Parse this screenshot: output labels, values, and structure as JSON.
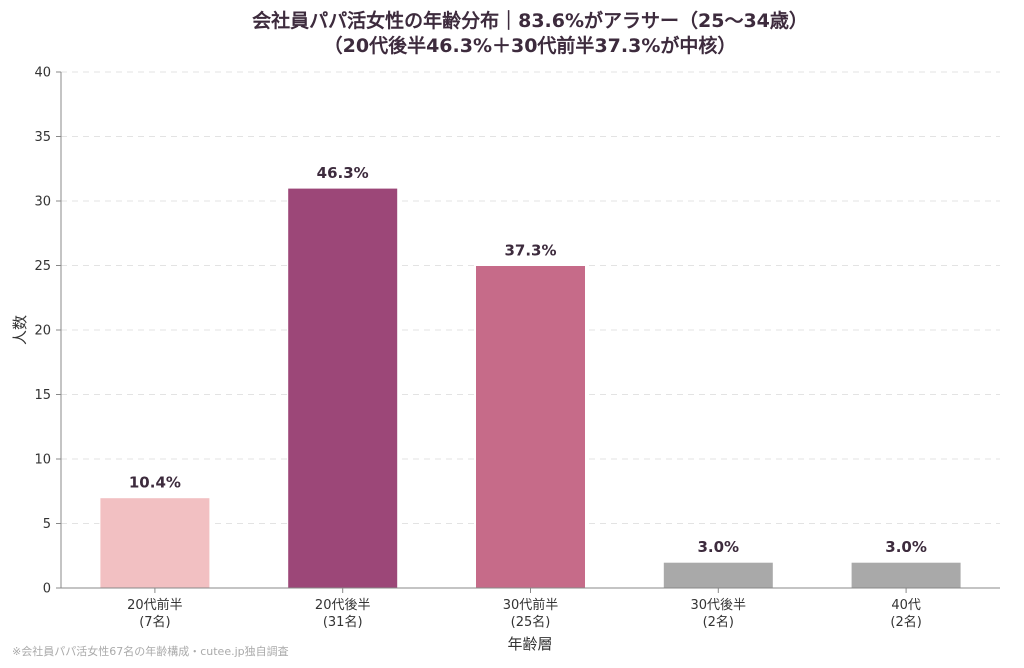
{
  "chart_data": {
    "type": "bar",
    "title": "会社員パパ活女性の年齢分布｜83.6%がアラサー（25〜34歳）",
    "subtitle": "（20代後半46.3%＋30代前半37.3%が中核）",
    "xlabel": "年齢層",
    "ylabel": "人数",
    "ylim": [
      0,
      40
    ],
    "yticks": [
      0,
      5,
      10,
      15,
      20,
      25,
      30,
      35,
      40
    ],
    "grid": true,
    "categories": [
      {
        "name": "20代前半",
        "count_label": "(7名)"
      },
      {
        "name": "20代後半",
        "count_label": "(31名)"
      },
      {
        "name": "30代前半",
        "count_label": "(25名)"
      },
      {
        "name": "30代後半",
        "count_label": "(2名)"
      },
      {
        "name": "40代",
        "count_label": "(2名)"
      }
    ],
    "values": [
      7,
      31,
      25,
      2,
      2
    ],
    "data_labels": [
      "10.4%",
      "46.3%",
      "37.3%",
      "3.0%",
      "3.0%"
    ],
    "colors": [
      "#f2c0c2",
      "#9c4778",
      "#c66b89",
      "#a9a9a9",
      "#a9a9a9"
    ]
  },
  "source_note": "※会社員パパ活女性67名の年齢構成・cutee.jp独自調査"
}
